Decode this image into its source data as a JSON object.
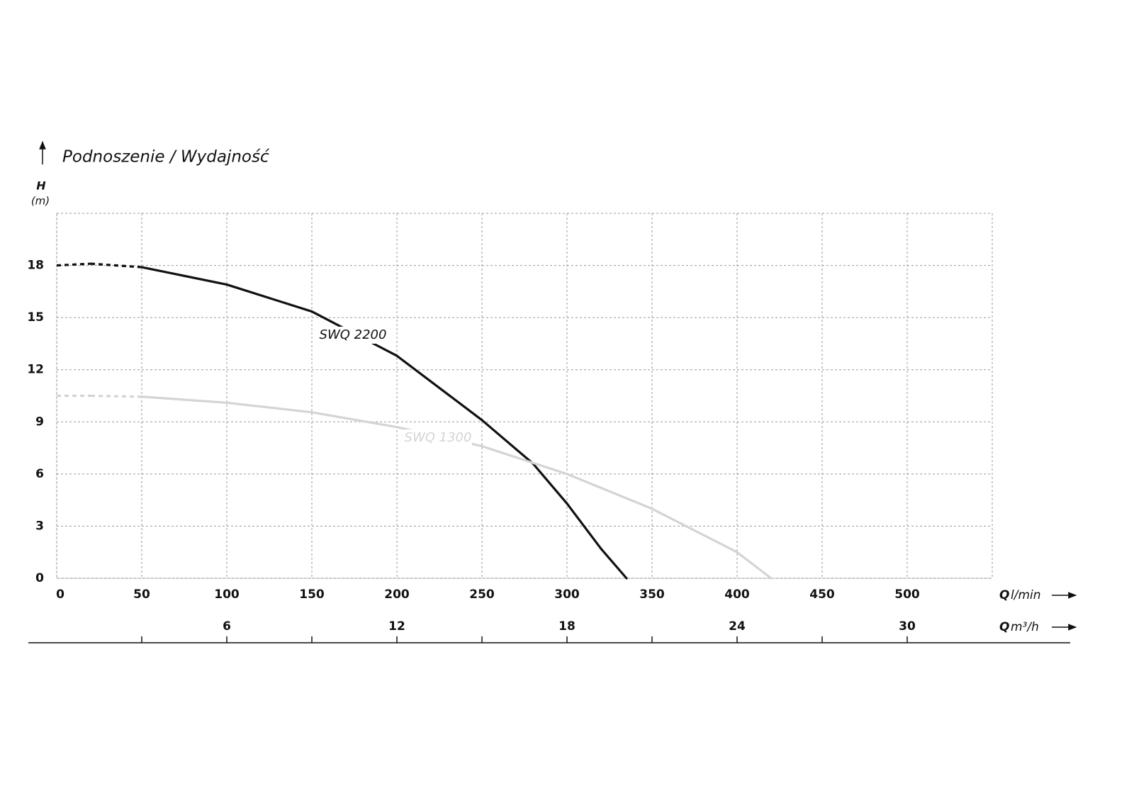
{
  "chart_data": {
    "type": "line",
    "title": "Podnoszenie / Wydajność",
    "ylabel_symbol": "H",
    "ylabel_unit": "(m)",
    "xlabel_symbol": "Q",
    "xlabel_unit": "l/min",
    "x2label_symbol": "Q",
    "x2label_unit": "m³/h",
    "xlim": [
      0,
      550
    ],
    "xticks": [
      0,
      50,
      100,
      150,
      200,
      250,
      300,
      350,
      400,
      450,
      500
    ],
    "x2lim": [
      0,
      33
    ],
    "x2ticks": [
      6,
      12,
      18,
      24,
      30
    ],
    "x2minor": [
      3,
      9,
      15,
      21,
      27
    ],
    "ylim": [
      0,
      21
    ],
    "yticks": [
      0,
      3,
      6,
      9,
      12,
      15,
      18
    ],
    "grid": true,
    "dashed_x_max": 50,
    "series": [
      {
        "name": "SWQ 2200",
        "color": "#111111",
        "x": [
          0,
          20,
          50,
          100,
          150,
          200,
          250,
          280,
          300,
          320,
          335
        ],
        "values": [
          18.0,
          18.1,
          17.9,
          16.9,
          15.35,
          12.8,
          9.1,
          6.6,
          4.3,
          1.7,
          0
        ]
      },
      {
        "name": "SWQ 1300",
        "color": "#d4d4d4",
        "x": [
          0,
          20,
          50,
          100,
          150,
          200,
          250,
          300,
          350,
          400,
          420
        ],
        "values": [
          10.5,
          10.5,
          10.45,
          10.1,
          9.55,
          8.7,
          7.6,
          6.0,
          4.0,
          1.5,
          0
        ]
      }
    ]
  }
}
